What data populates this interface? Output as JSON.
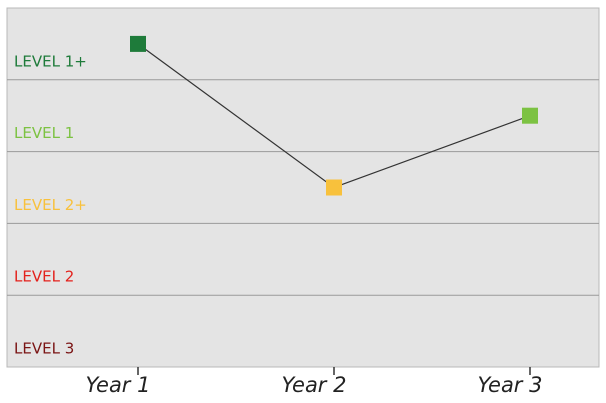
{
  "chart_data": {
    "type": "line",
    "categories": [
      "Year 1",
      "Year 2",
      "Year 3"
    ],
    "values": [
      4.5,
      2.5,
      3.5
    ],
    "point_colors": [
      "#1e7b3a",
      "#f8c13c",
      "#7cc242"
    ],
    "line_color": "#333333",
    "ylim": [
      0,
      5
    ],
    "yticks": [
      {
        "value": 0,
        "label": "LEVEL 3"
      },
      {
        "value": 1,
        "label": "LEVEL 2"
      },
      {
        "value": 2,
        "label": "LEVEL 2+"
      },
      {
        "value": 3,
        "label": "LEVEL 1"
      },
      {
        "value": 4,
        "label": "LEVEL 1+"
      }
    ],
    "ytick_colors": [
      "#7a1414",
      "#e3211c",
      "#f8c13c",
      "#7cc242",
      "#1e7b3a"
    ],
    "grid": true
  }
}
